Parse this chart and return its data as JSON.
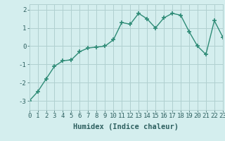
{
  "x": [
    0,
    1,
    2,
    3,
    4,
    5,
    6,
    7,
    8,
    9,
    10,
    11,
    12,
    13,
    14,
    15,
    16,
    17,
    18,
    19,
    20,
    21,
    22,
    23
  ],
  "y": [
    -3.0,
    -2.5,
    -1.8,
    -1.1,
    -0.8,
    -0.75,
    -0.3,
    -0.1,
    -0.05,
    0.0,
    0.35,
    1.3,
    1.2,
    1.8,
    1.5,
    1.0,
    1.55,
    1.8,
    1.7,
    0.8,
    0.0,
    -0.45,
    1.4,
    0.5
  ],
  "line_color": "#2e8b76",
  "marker": "+",
  "marker_size": 4,
  "marker_lw": 1.2,
  "line_width": 1.0,
  "bg_color": "#d4eeee",
  "grid_color": "#b0d0d0",
  "xlabel": "Humidex (Indice chaleur)",
  "xlim": [
    0,
    23
  ],
  "ylim": [
    -3.5,
    2.3
  ],
  "yticks": [
    -3,
    -2,
    -1,
    0,
    1,
    2
  ],
  "xtick_labels": [
    "0",
    "1",
    "2",
    "3",
    "4",
    "5",
    "6",
    "7",
    "8",
    "9",
    "10",
    "11",
    "12",
    "13",
    "14",
    "15",
    "16",
    "17",
    "18",
    "19",
    "20",
    "21",
    "22",
    "23"
  ],
  "tick_color": "#2e6060",
  "label_color": "#2e6060",
  "tick_fontsize": 6.5,
  "xlabel_fontsize": 7.5
}
